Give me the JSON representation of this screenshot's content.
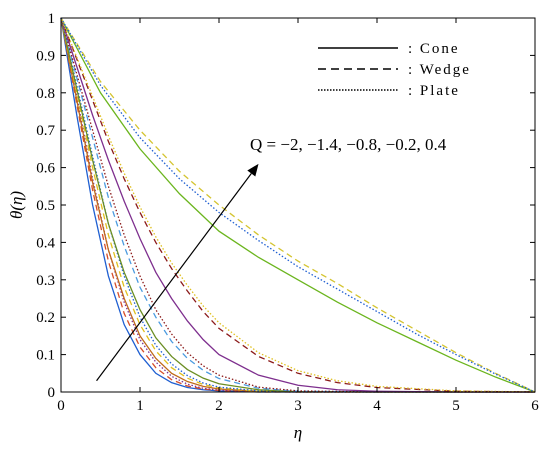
{
  "chart_data": {
    "type": "line",
    "xlabel": "η",
    "ylabel": "θ(η)",
    "xlim": [
      0,
      6
    ],
    "ylim": [
      0,
      1
    ],
    "xticks": [
      "0",
      "1",
      "2",
      "3",
      "4",
      "5",
      "6"
    ],
    "yticks": [
      "0",
      "0.1",
      "0.2",
      "0.3",
      "0.4",
      "0.5",
      "0.6",
      "0.7",
      "0.8",
      "0.9",
      "1"
    ],
    "grid": false,
    "legend": {
      "placement": "top-right",
      "entries": [
        {
          "label": ": Cone",
          "style": "solid"
        },
        {
          "label": ": Wedge",
          "style": "dashed"
        },
        {
          "label": ": Plate",
          "style": "dotted"
        }
      ]
    },
    "annotation": {
      "text": "Q = −2, −1.4, −0.8, −0.2, 0.4",
      "arrow_from": [
        0.45,
        0.03
      ],
      "arrow_to": [
        2.5,
        0.61
      ]
    },
    "series": [
      {
        "group": "Q=-2",
        "geometry": "Cone",
        "style": "solid",
        "color": "#1f5fd1",
        "x": [
          0,
          0.2,
          0.4,
          0.6,
          0.8,
          1.0,
          1.2,
          1.4,
          1.6,
          1.8,
          2.0,
          2.5,
          3,
          4,
          5,
          6
        ],
        "y": [
          1,
          0.74,
          0.5,
          0.31,
          0.18,
          0.1,
          0.05,
          0.025,
          0.012,
          0.006,
          0.003,
          0,
          0,
          0,
          0,
          0
        ]
      },
      {
        "group": "Q=-2",
        "geometry": "Wedge",
        "style": "dashed",
        "color": "#d64f2a",
        "x": [
          0,
          0.2,
          0.4,
          0.6,
          0.8,
          1.0,
          1.2,
          1.4,
          1.6,
          1.8,
          2.0,
          2.5,
          3,
          4,
          5,
          6
        ],
        "y": [
          1,
          0.77,
          0.54,
          0.35,
          0.21,
          0.12,
          0.065,
          0.033,
          0.016,
          0.008,
          0.004,
          0,
          0,
          0,
          0,
          0
        ]
      },
      {
        "group": "Q=-2",
        "geometry": "Plate",
        "style": "dotted",
        "color": "#7e2f8e",
        "x": [
          0,
          0.2,
          0.4,
          0.6,
          0.8,
          1.0,
          1.2,
          1.4,
          1.6,
          1.8,
          2.0,
          2.5,
          3,
          4,
          5,
          6
        ],
        "y": [
          1,
          0.79,
          0.57,
          0.38,
          0.24,
          0.14,
          0.08,
          0.042,
          0.021,
          0.01,
          0.005,
          0.001,
          0,
          0,
          0,
          0
        ]
      },
      {
        "group": "Q=-1.4",
        "geometry": "Cone",
        "style": "solid",
        "color": "#c06a1a",
        "x": [
          0,
          0.2,
          0.4,
          0.6,
          0.8,
          1.0,
          1.2,
          1.4,
          1.6,
          1.8,
          2.0,
          2.5,
          3,
          4,
          5,
          6
        ],
        "y": [
          1,
          0.78,
          0.56,
          0.38,
          0.25,
          0.15,
          0.09,
          0.05,
          0.028,
          0.015,
          0.008,
          0.002,
          0,
          0,
          0,
          0
        ]
      },
      {
        "group": "Q=-1.4",
        "geometry": "Wedge",
        "style": "dashed",
        "color": "#e0c020",
        "x": [
          0,
          0.2,
          0.4,
          0.6,
          0.8,
          1.0,
          1.2,
          1.4,
          1.6,
          1.8,
          2.0,
          2.5,
          3,
          4,
          5,
          6
        ],
        "y": [
          1,
          0.8,
          0.6,
          0.42,
          0.28,
          0.18,
          0.11,
          0.065,
          0.037,
          0.02,
          0.011,
          0.002,
          0,
          0,
          0,
          0
        ]
      },
      {
        "group": "Q=-1.4",
        "geometry": "Plate",
        "style": "dotted",
        "color": "#1f5fd1",
        "x": [
          0,
          0.2,
          0.4,
          0.6,
          0.8,
          1.0,
          1.2,
          1.4,
          1.6,
          1.8,
          2.0,
          2.5,
          3,
          4,
          5,
          6
        ],
        "y": [
          1,
          0.82,
          0.63,
          0.45,
          0.31,
          0.2,
          0.125,
          0.075,
          0.044,
          0.024,
          0.013,
          0.003,
          0,
          0,
          0,
          0
        ]
      },
      {
        "group": "Q=-0.8",
        "geometry": "Cone",
        "style": "solid",
        "color": "#6b8e23",
        "x": [
          0,
          0.2,
          0.4,
          0.6,
          0.8,
          1.0,
          1.2,
          1.4,
          1.6,
          1.8,
          2.0,
          2.5,
          3,
          4,
          5,
          6
        ],
        "y": [
          1,
          0.81,
          0.62,
          0.45,
          0.32,
          0.22,
          0.145,
          0.095,
          0.06,
          0.037,
          0.022,
          0.006,
          0.001,
          0,
          0,
          0
        ]
      },
      {
        "group": "Q=-0.8",
        "geometry": "Wedge",
        "style": "dashed",
        "color": "#4c9be0",
        "x": [
          0,
          0.2,
          0.4,
          0.6,
          0.8,
          1.0,
          1.2,
          1.4,
          1.6,
          1.8,
          2.0,
          2.5,
          3,
          4,
          5,
          6
        ],
        "y": [
          1,
          0.84,
          0.68,
          0.52,
          0.39,
          0.28,
          0.2,
          0.135,
          0.09,
          0.058,
          0.036,
          0.01,
          0.002,
          0,
          0,
          0
        ]
      },
      {
        "group": "Q=-0.8",
        "geometry": "Plate",
        "style": "dotted",
        "color": "#8b1a1a",
        "x": [
          0,
          0.2,
          0.4,
          0.6,
          0.8,
          1.0,
          1.2,
          1.4,
          1.6,
          1.8,
          2.0,
          2.5,
          3,
          4,
          5,
          6
        ],
        "y": [
          1,
          0.85,
          0.7,
          0.55,
          0.42,
          0.31,
          0.22,
          0.155,
          0.105,
          0.07,
          0.045,
          0.013,
          0.003,
          0,
          0,
          0
        ]
      },
      {
        "group": "Q=-0.2",
        "geometry": "Cone",
        "style": "solid",
        "color": "#7e2f8e",
        "x": [
          0,
          0.2,
          0.4,
          0.6,
          0.8,
          1.0,
          1.2,
          1.4,
          1.6,
          1.8,
          2.0,
          2.5,
          3,
          3.5,
          4,
          5,
          6
        ],
        "y": [
          1,
          0.87,
          0.74,
          0.62,
          0.51,
          0.41,
          0.32,
          0.25,
          0.19,
          0.14,
          0.1,
          0.045,
          0.018,
          0.006,
          0.002,
          0,
          0
        ]
      },
      {
        "group": "Q=-0.2",
        "geometry": "Wedge",
        "style": "dashed",
        "color": "#8b1a1a",
        "x": [
          0,
          0.2,
          0.4,
          0.6,
          0.8,
          1.0,
          1.2,
          1.4,
          1.6,
          1.8,
          2.0,
          2.5,
          3,
          3.5,
          4,
          5,
          6
        ],
        "y": [
          1,
          0.89,
          0.78,
          0.67,
          0.57,
          0.48,
          0.4,
          0.33,
          0.27,
          0.215,
          0.17,
          0.095,
          0.05,
          0.025,
          0.012,
          0.002,
          0
        ]
      },
      {
        "group": "Q=-0.2",
        "geometry": "Plate",
        "style": "dotted",
        "color": "#e0c020",
        "x": [
          0,
          0.2,
          0.4,
          0.6,
          0.8,
          1.0,
          1.2,
          1.4,
          1.6,
          1.8,
          2.0,
          2.5,
          3,
          3.5,
          4,
          5,
          6
        ],
        "y": [
          1,
          0.895,
          0.79,
          0.685,
          0.585,
          0.495,
          0.415,
          0.345,
          0.285,
          0.23,
          0.185,
          0.105,
          0.057,
          0.03,
          0.015,
          0.003,
          0
        ]
      },
      {
        "group": "Q=0.4",
        "geometry": "Cone",
        "style": "solid",
        "color": "#6bb51e",
        "x": [
          0,
          0.5,
          1,
          1.5,
          2,
          2.5,
          3,
          3.5,
          4,
          4.5,
          5,
          5.5,
          6
        ],
        "y": [
          1,
          0.8,
          0.65,
          0.53,
          0.43,
          0.36,
          0.3,
          0.24,
          0.185,
          0.135,
          0.085,
          0.04,
          0
        ]
      },
      {
        "group": "Q=0.4",
        "geometry": "Wedge",
        "style": "dashed",
        "color": "#d4c430",
        "x": [
          0,
          0.5,
          1,
          1.5,
          2,
          2.5,
          3,
          3.5,
          4,
          4.5,
          5,
          5.5,
          6
        ],
        "y": [
          1,
          0.83,
          0.7,
          0.59,
          0.5,
          0.42,
          0.35,
          0.29,
          0.225,
          0.165,
          0.105,
          0.05,
          0
        ]
      },
      {
        "group": "Q=0.4",
        "geometry": "Plate",
        "style": "dotted",
        "color": "#1f5fd1",
        "x": [
          0,
          0.5,
          1,
          1.5,
          2,
          2.5,
          3,
          3.5,
          4,
          4.5,
          5,
          5.5,
          6
        ],
        "y": [
          1,
          0.82,
          0.68,
          0.57,
          0.48,
          0.405,
          0.335,
          0.275,
          0.215,
          0.155,
          0.1,
          0.048,
          0
        ]
      }
    ]
  }
}
